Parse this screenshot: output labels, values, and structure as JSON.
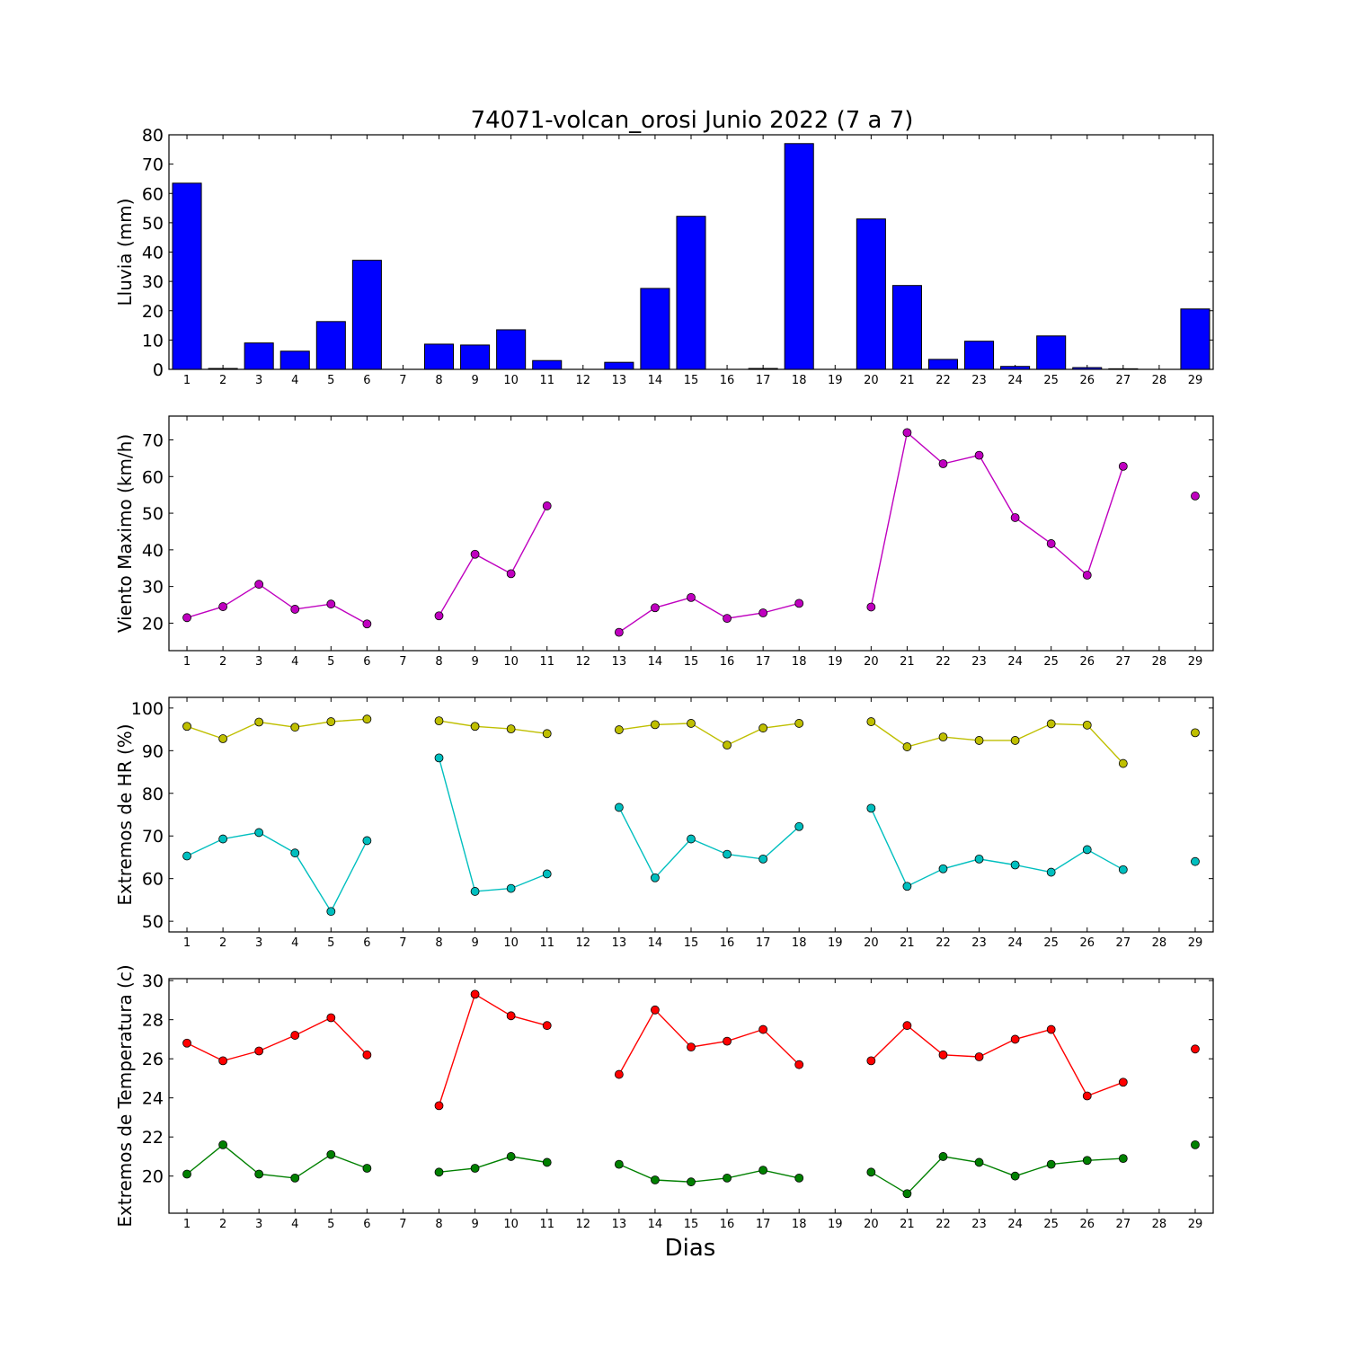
{
  "chart_data": {
    "title": "74071-volcan_orosi Junio 2022  (7 a 7)",
    "xlabel": "Dias",
    "x": [
      1,
      2,
      3,
      4,
      5,
      6,
      7,
      8,
      9,
      10,
      11,
      12,
      13,
      14,
      15,
      16,
      17,
      18,
      19,
      20,
      21,
      22,
      23,
      24,
      25,
      26,
      27,
      28,
      29
    ],
    "panels": [
      {
        "type": "bar",
        "ylabel": "Lluvia (mm)",
        "ylim": [
          0,
          80
        ],
        "yticks": [
          0,
          10,
          20,
          30,
          40,
          50,
          60,
          70,
          80
        ],
        "series": [
          {
            "color": "#0000ff",
            "values": [
              63.5,
              0.3,
              9,
              6.2,
              16.3,
              37.2,
              0,
              8.6,
              8.3,
              13.5,
              3,
              0,
              2.4,
              27.6,
              52.2,
              0,
              0.3,
              77,
              0,
              51.3,
              28.6,
              3.4,
              9.6,
              1,
              11.4,
              0.6,
              0.2,
              0,
              20.6
            ]
          }
        ]
      },
      {
        "type": "line",
        "ylabel": "Viento Maximo (km/h)",
        "ylim": [
          12.5,
          76.5
        ],
        "yticks": [
          20,
          30,
          40,
          50,
          60,
          70
        ],
        "series": [
          {
            "color": "#bf00bf",
            "values": [
              21.5,
              24.5,
              30.6,
              23.8,
              25.2,
              19.8,
              null,
              22,
              38.8,
              33.5,
              52,
              null,
              17.5,
              24.2,
              27,
              21.3,
              22.8,
              25.4,
              null,
              24.4,
              72,
              63.5,
              65.8,
              48.8,
              41.7,
              33.1,
              62.8,
              null,
              54.7
            ]
          }
        ]
      },
      {
        "type": "line",
        "ylabel": "Extremos de HR (%)",
        "ylim": [
          47.5,
          102.5
        ],
        "yticks": [
          50,
          60,
          70,
          80,
          90,
          100
        ],
        "series": [
          {
            "color": "#bfbf00",
            "values": [
              95.7,
              92.8,
              96.7,
              95.5,
              96.8,
              97.4,
              null,
              97,
              95.7,
              95.1,
              94,
              null,
              94.9,
              96.1,
              96.4,
              91.3,
              95.3,
              96.4,
              null,
              96.8,
              90.9,
              93.2,
              92.4,
              92.4,
              96.3,
              96,
              87,
              null,
              94.2
            ]
          },
          {
            "color": "#00bfbf",
            "values": [
              65.3,
              69.3,
              70.8,
              66,
              52.3,
              68.9,
              null,
              88.3,
              57,
              57.7,
              61.1,
              null,
              76.7,
              60.2,
              69.3,
              65.7,
              64.6,
              72.2,
              null,
              76.5,
              58.2,
              62.3,
              64.6,
              63.2,
              61.5,
              66.8,
              62.1,
              null,
              64
            ]
          }
        ]
      },
      {
        "type": "line",
        "ylabel": "Extremos de Temperatura (c)",
        "ylim": [
          18.1,
          30.1
        ],
        "yticks": [
          20,
          22,
          24,
          26,
          28,
          30
        ],
        "series": [
          {
            "color": "#ff0000",
            "values": [
              26.8,
              25.9,
              26.4,
              27.2,
              28.1,
              26.2,
              null,
              23.6,
              29.3,
              28.2,
              27.7,
              null,
              25.2,
              28.5,
              26.6,
              26.9,
              27.5,
              25.7,
              null,
              25.9,
              27.7,
              26.2,
              26.1,
              27,
              27.5,
              24.1,
              24.8,
              null,
              26.5
            ]
          },
          {
            "color": "#008000",
            "values": [
              20.1,
              21.6,
              20.1,
              19.9,
              21.1,
              20.4,
              null,
              20.2,
              20.4,
              21,
              20.7,
              null,
              20.6,
              19.8,
              19.7,
              19.9,
              20.3,
              19.9,
              null,
              20.2,
              19.1,
              21,
              20.7,
              20,
              20.6,
              20.8,
              20.9,
              null,
              21.6
            ]
          }
        ]
      }
    ]
  }
}
